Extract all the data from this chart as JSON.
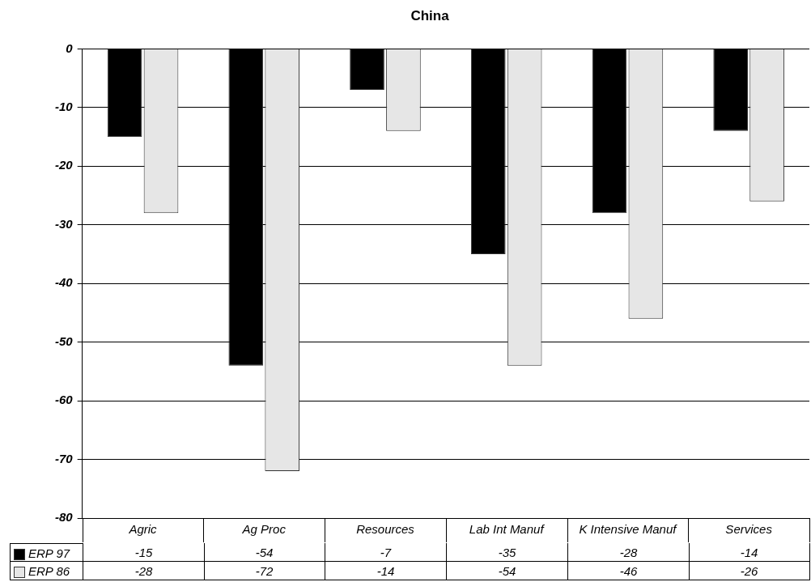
{
  "chart_data": {
    "type": "bar",
    "title": "China",
    "categories": [
      "Agric",
      "Ag Proc",
      "Resources",
      "Lab Int Manuf",
      "K Intensive Manuf",
      "Services"
    ],
    "series": [
      {
        "name": "ERP 97",
        "color": "#000000",
        "values": [
          -15,
          -54,
          -7,
          -35,
          -28,
          -14
        ]
      },
      {
        "name": "ERP 86",
        "color": "#e6e6e6",
        "values": [
          -28,
          -72,
          -14,
          -54,
          -46,
          -26
        ]
      }
    ],
    "ylim": [
      -80,
      0
    ],
    "yticks": [
      0,
      -10,
      -20,
      -30,
      -40,
      -50,
      -60,
      -70,
      -80
    ],
    "grid": "y",
    "legend": "bottom",
    "data_labels": true
  }
}
